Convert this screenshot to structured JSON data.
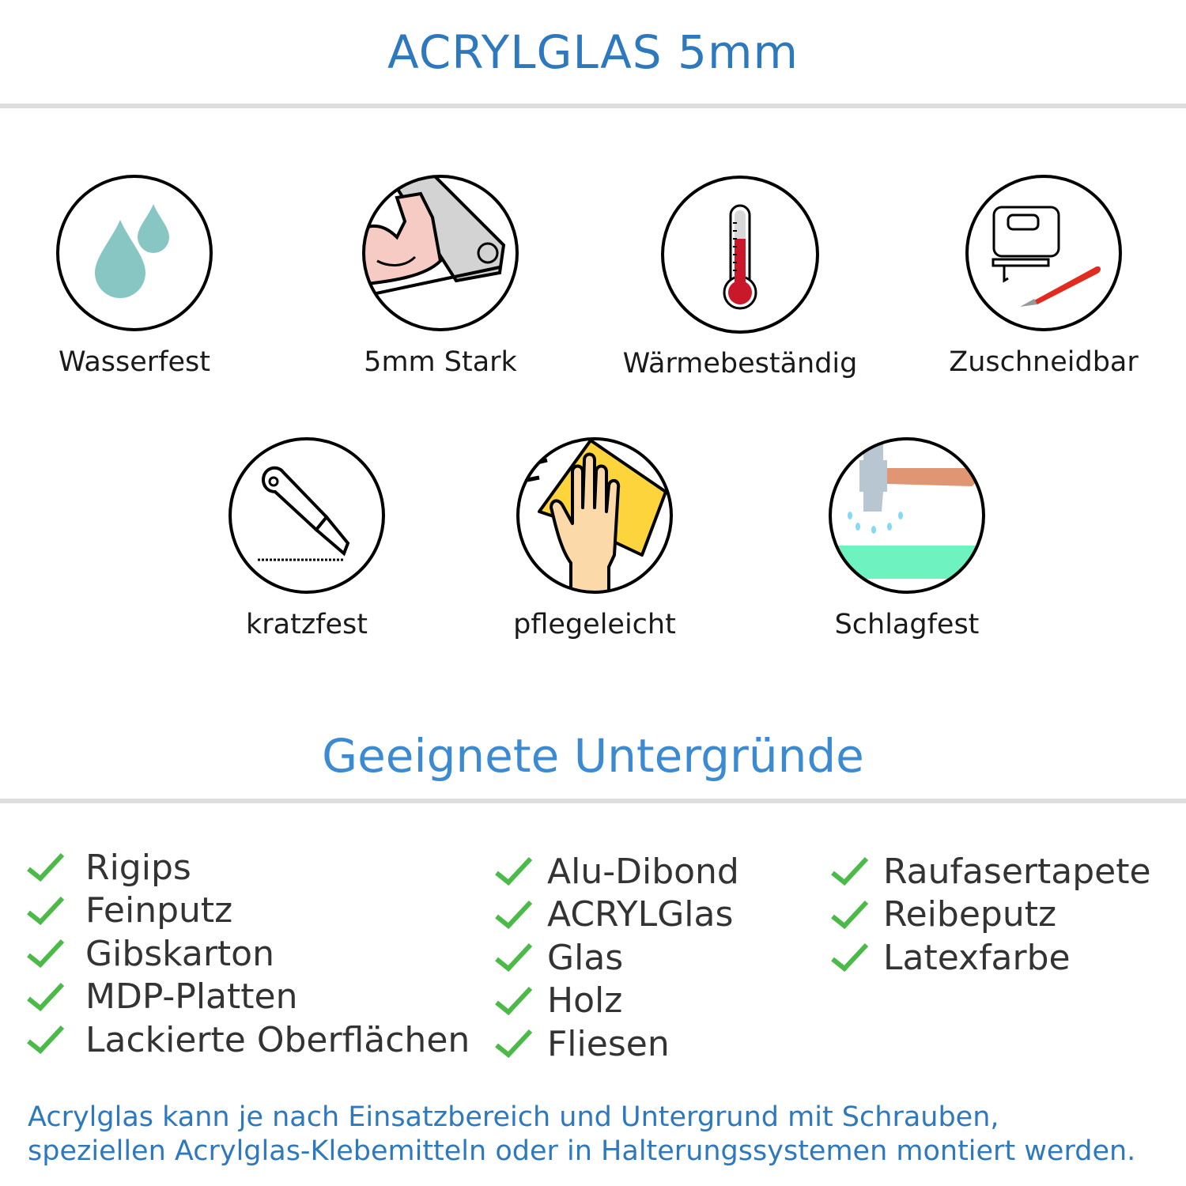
{
  "header": {
    "title": "ACRYLGLAS 5mm"
  },
  "features": [
    {
      "label": "Wasserfest",
      "icon": "water-drops-icon"
    },
    {
      "label": "5mm Stark",
      "icon": "strong-arm-icon"
    },
    {
      "label": "Wärmebeständig",
      "icon": "thermometer-icon"
    },
    {
      "label": "Zuschneidbar",
      "icon": "jigsaw-cutter-icon"
    },
    {
      "label": "kratzfest",
      "icon": "box-cutter-icon"
    },
    {
      "label": "pflegeleicht",
      "icon": "cleaning-hand-icon"
    },
    {
      "label": "Schlagfest",
      "icon": "hammer-icon"
    }
  ],
  "surfaces": {
    "title": "Geeignete Untergründe",
    "columns": [
      [
        "Rigips",
        "Feinputz",
        "Gibskarton",
        "MDP-Platten",
        "Lackierte Oberflächen"
      ],
      [
        "Alu-Dibond",
        "ACRYLGlas",
        "Glas",
        "Holz",
        "Fliesen"
      ],
      [
        "Raufasertapete",
        "Reibeputz",
        "Latexfarbe"
      ]
    ]
  },
  "note": {
    "line1": "Acrylglas kann je nach Einsatzbereich und Untergrund mit Schrauben,",
    "line2": "speziellen Acrylglas-Klebemitteln oder in Halterungssystemen montiert werden."
  },
  "colors": {
    "title": "#2e79be",
    "subtitle": "#3b8ad2",
    "check": "#4cba48",
    "rule": "#dedede"
  }
}
